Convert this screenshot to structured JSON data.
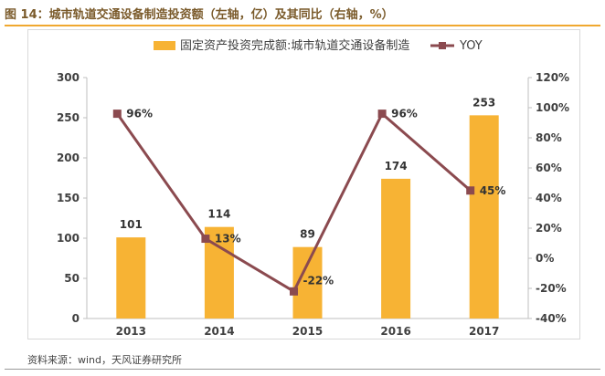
{
  "figure": {
    "title": "图 14：城市轨道交通设备制造投资额（左轴，亿）及其同比（右轴，%）",
    "source": "资料来源：wind，天风证券研究所"
  },
  "chart_data": {
    "type": "bar",
    "categories": [
      "2013",
      "2014",
      "2015",
      "2016",
      "2017"
    ],
    "series": [
      {
        "name": "固定资产投资完成额:城市轨道交通设备制造",
        "kind": "bar",
        "axis": "left",
        "color": "#f7b334",
        "values": [
          101,
          114,
          89,
          174,
          253
        ],
        "labels": [
          "101",
          "114",
          "89",
          "174",
          "253"
        ]
      },
      {
        "name": "YOY",
        "kind": "line",
        "axis": "right",
        "color": "#8b4a4f",
        "values": [
          96,
          13,
          -22,
          96,
          45
        ],
        "labels": [
          "96%",
          "13%",
          "-22%",
          "96%",
          "45%"
        ]
      }
    ],
    "left_axis": {
      "min": 0,
      "max": 300,
      "ticks": [
        "0",
        "50",
        "100",
        "150",
        "200",
        "250",
        "300"
      ]
    },
    "right_axis": {
      "min": -40,
      "max": 120,
      "ticks": [
        "-40%",
        "-20%",
        "0%",
        "20%",
        "40%",
        "60%",
        "80%",
        "100%",
        "120%"
      ]
    },
    "legend_position": "top",
    "grid": false
  }
}
